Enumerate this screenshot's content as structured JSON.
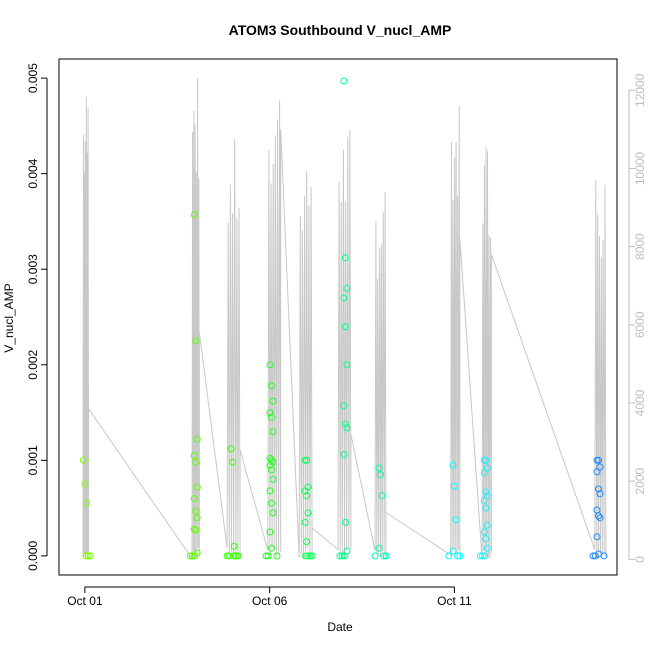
{
  "chart_data": {
    "type": "scatter",
    "title": "ATOM3 Southbound V_nucl_AMP",
    "xlabel": "Date",
    "ylabel": "V_nucl_AMP",
    "x_ticks": [
      "Oct 01",
      "Oct 06",
      "Oct 11"
    ],
    "x_tick_days": [
      1,
      6,
      11
    ],
    "xlim_days": [
      0.3,
      15.4
    ],
    "ylim": [
      -0.0002,
      0.0052
    ],
    "y_ticks": [
      "0.000",
      "0.001",
      "0.002",
      "0.003",
      "0.004",
      "0.005"
    ],
    "y_tick_values": [
      0,
      0.001,
      0.002,
      0.003,
      0.004,
      0.005
    ],
    "y2_ticks": [
      "0",
      "2000",
      "4000",
      "6000",
      "8000",
      "10000",
      "12000"
    ],
    "y2_tick_values": [
      0,
      2000,
      4000,
      6000,
      8000,
      10000,
      12000
    ],
    "y2lim": [
      -400,
      12800
    ],
    "grid": false,
    "colors": {
      "line": "#c8c8c8",
      "axis": "#000000",
      "axis_right": "#bdbdbd"
    },
    "points_series": [
      {
        "x": 1.0,
        "color": "#7fff00",
        "values": [
          0.001,
          0.00075,
          0.00055,
          0.0,
          0.0,
          0.0
        ]
      },
      {
        "x": 4.0,
        "color": "#5cff00",
        "values": [
          0.00357,
          0.00225,
          0.00122,
          0.00105,
          0.00098,
          0.00072,
          0.0006,
          0.00047,
          0.0004,
          0.00028,
          0.00027,
          3e-05,
          0.0,
          0.0,
          0.0
        ]
      },
      {
        "x": 5.0,
        "color": "#33ff00",
        "values": [
          0.00112,
          0.00098,
          0.0001,
          0.0,
          0.0,
          0.0,
          0.0,
          0.0
        ]
      },
      {
        "x": 6.05,
        "color": "#22ff22",
        "values": [
          0.002,
          0.00178,
          0.00162,
          0.0015,
          0.00145,
          0.0013,
          0.00102,
          0.001,
          0.00098,
          0.00095,
          0.0009,
          0.0008,
          0.00068,
          0.00055,
          0.00045,
          0.00025,
          8e-05,
          0.0,
          0.0,
          0.0
        ]
      },
      {
        "x": 7.0,
        "color": "#11ff55",
        "values": [
          0.001,
          0.001,
          0.00072,
          0.00068,
          0.00063,
          0.00045,
          0.00035,
          0.00015,
          0.0,
          0.0,
          0.0,
          0.0
        ]
      },
      {
        "x": 8.05,
        "color": "#00ff88",
        "values": [
          0.00497,
          0.00312,
          0.0028,
          0.0027,
          0.0024,
          0.002,
          0.00157,
          0.00138,
          0.00134,
          0.00106,
          0.00035,
          5e-05,
          0.0,
          0.0,
          0.0
        ]
      },
      {
        "x": 9.0,
        "color": "#00ffb0",
        "values": [
          0.00092,
          0.00085,
          0.00063,
          8e-05,
          0.0,
          0.0,
          0.0
        ]
      },
      {
        "x": 11.0,
        "color": "#00ffff",
        "values": [
          0.00095,
          0.00073,
          0.00038,
          5e-05,
          0.0,
          0.0,
          0.0
        ]
      },
      {
        "x": 11.85,
        "color": "#22eeff",
        "values": [
          0.001,
          0.001,
          0.00092,
          0.00087,
          0.00067,
          0.00063,
          0.00058,
          0.0005,
          0.00032,
          0.00025,
          0.00018,
          8e-05,
          0.0,
          0.0,
          0.0
        ]
      },
      {
        "x": 14.9,
        "color": "#1a8fff",
        "values": [
          0.001,
          0.001,
          0.00093,
          0.00088,
          0.0007,
          0.00065,
          0.00048,
          0.00042,
          0.0004,
          0.0002,
          2e-05,
          0.0,
          0.0,
          0.0
        ]
      }
    ],
    "line_series": [
      {
        "name": "",
        "bursts": [
          {
            "x0": 0.95,
            "x1": 1.1,
            "peak": 12200,
            "base": 3850
          },
          {
            "x0": 3.9,
            "x1": 4.1,
            "peak": 12500,
            "base": 5800
          },
          {
            "x0": 4.85,
            "x1": 5.2,
            "peak": 10800,
            "base": 2800
          },
          {
            "x0": 5.95,
            "x1": 6.3,
            "peak": 12500,
            "base": 11000
          },
          {
            "x0": 6.8,
            "x1": 7.15,
            "peak": 10900,
            "base": 800
          },
          {
            "x0": 7.85,
            "x1": 8.2,
            "peak": 11200,
            "base": 3200
          },
          {
            "x0": 8.85,
            "x1": 9.15,
            "peak": 9500,
            "base": 1200
          },
          {
            "x0": 10.9,
            "x1": 11.15,
            "peak": 11900,
            "base": 8200
          },
          {
            "x0": 11.75,
            "x1": 12.0,
            "peak": 10900,
            "base": 7800
          },
          {
            "x0": 14.8,
            "x1": 15.1,
            "peak": 10100,
            "base": 400
          }
        ]
      }
    ]
  }
}
